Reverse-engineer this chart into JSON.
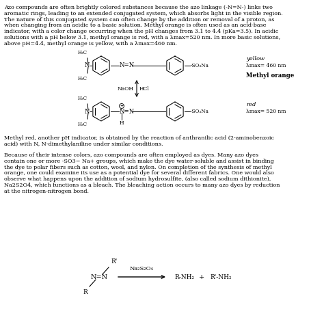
{
  "bg_color": "#ffffff",
  "text_color": "#000000",
  "fig_width": 4.74,
  "fig_height": 4.68,
  "dpi": 100,
  "fs_body": 5.8,
  "fs_small": 5.2,
  "fs_chem": 6.0,
  "fs_bold": 6.0,
  "para1_lines": [
    "Azo compounds are often brightly colored substances because the azo linkage (-N=N-) links two",
    "aromatic rings, leading to an extended conjugated system, which absorbs light in the visible region.",
    "The nature of this conjugated system can often change by the addition or removal of a proton, as",
    "when changing from an acidic to a basic solution. Methyl orange is often used as an acid-base",
    "indicator, with a color change occurring when the pH changes from 3.1 to 4.4 (pKa=3.5). In acidic",
    "solutions with a pH below 3.1, methyl orange is red, with a λmax=520 nm. In more basic solutions,",
    "above pH=4.4, methyl orange is yellow, with a λmax=460 nm."
  ],
  "para2_lines": [
    "Methyl red, another pH indicator, is obtained by the reaction of anthranilic acid (2-aminobenzoic",
    "acid) with N, N-dimethylaniline under similar conditions."
  ],
  "para3_lines": [
    "Because of their intense colors, azo compounds are often employed as dyes. Many azo dyes",
    "contain one or more -SO3− Na+ groups, which make the dye water-soluble and assist in binding",
    "the dye to polar fibers such as cotton, wool, and nylon. On completion of the synthesis of methyl",
    "orange, one could examine its use as a potential dye for several different fabrics. One would also",
    "observe what happens upon the addition of sodium hydrosulfite, (also called sodium dithionite),",
    "Na2S2O4, which functions as a bleach. The bleaching action occurs to many azo dyes by reduction",
    "at the nitrogen-nitrogen bond."
  ]
}
